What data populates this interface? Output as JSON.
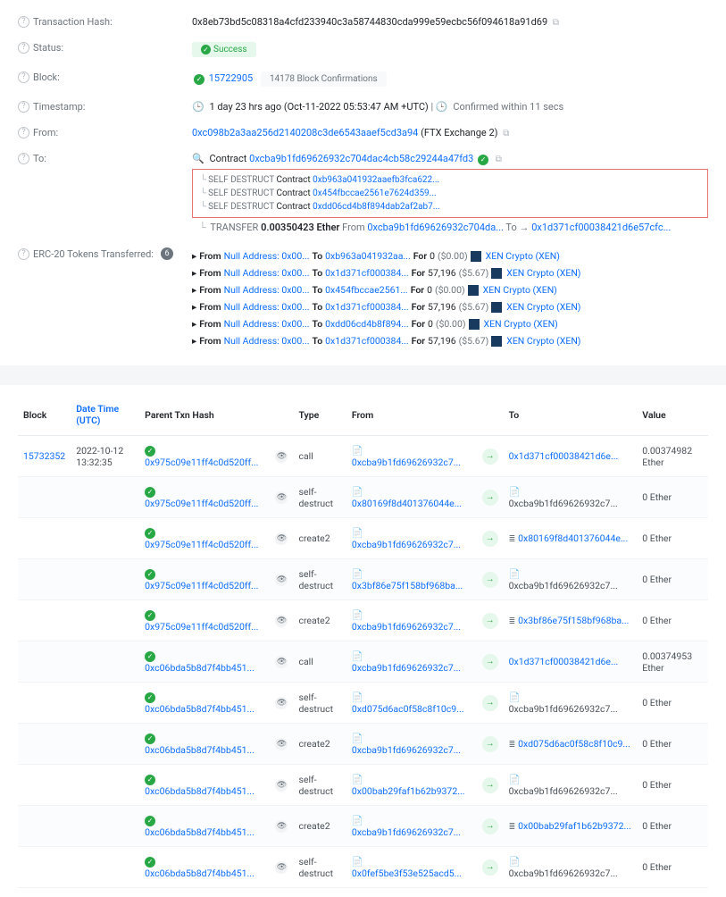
{
  "tx": {
    "hash_label": "Transaction Hash:",
    "hash": "0x8eb73bd5c08318a4cfd233940c3a58744830cda999e59ecbc56f094618a91d69",
    "status_label": "Status:",
    "status_badge": "Success",
    "block_label": "Block:",
    "block_number": "15722905",
    "block_confirmations": "14178 Block Confirmations",
    "timestamp_label": "Timestamp:",
    "timestamp_ago": "1 day 23 hrs ago",
    "timestamp_full": "(Oct-11-2022 05:53:47 AM +UTC)",
    "confirmed_within": "Confirmed within 11 secs",
    "from_label": "From:",
    "from_addr": "0xc098b2a3aa256d2140208c3de6543aaef5cd3a94",
    "from_tag": "(FTX Exchange 2)",
    "to_label": "To:",
    "to_contract_prefix": "Contract",
    "to_contract": "0xcba9b1fd69626932c704dac4cb58c29244a47fd3",
    "self_destruct_prefix": "SELF DESTRUCT",
    "contract_word": "Contract",
    "sd1": "0xb963a041932aaefb3fca622...",
    "sd2": "0x454fbccae2561e7624d359...",
    "sd3": "0xdd06cd4b8f894dab2af2ab7...",
    "transfer_label": "TRANSFER",
    "transfer_amount": "0.00350423 Ether",
    "transfer_from_word": "From",
    "transfer_from_addr": "0xcba9b1fd69626932c704da...",
    "transfer_to_word": "To",
    "transfer_to_arrow": "→",
    "transfer_to_addr": "0x1d371cf00038421d6e57cfc..."
  },
  "erc20": {
    "label": "ERC-20 Tokens Transferred:",
    "count": "6",
    "from_word": "From",
    "to_word": "To",
    "for_word": "For",
    "null_addr": "Null Address: 0x00...",
    "rows": [
      {
        "to": "0xb963a041932aa...",
        "amount": "0",
        "usd": "($0.00)",
        "token": "XEN Crypto (XEN)"
      },
      {
        "to": "0x1d371cf000384...",
        "amount": "57,196",
        "usd": "($5.67)",
        "token": "XEN Crypto (XEN)"
      },
      {
        "to": "0x454fbccae2561...",
        "amount": "0",
        "usd": "($0.00)",
        "token": "XEN Crypto (XEN)"
      },
      {
        "to": "0x1d371cf000384...",
        "amount": "57,196",
        "usd": "($5.67)",
        "token": "XEN Crypto (XEN)"
      },
      {
        "to": "0xdd06cd4b8f894...",
        "amount": "0",
        "usd": "($0.00)",
        "token": "XEN Crypto (XEN)"
      },
      {
        "to": "0x1d371cf000384...",
        "amount": "57,196",
        "usd": "($5.67)",
        "token": "XEN Crypto (XEN)"
      }
    ]
  },
  "table": {
    "headers": {
      "block": "Block",
      "datetime": "Date Time (UTC)",
      "parent": "Parent Txn Hash",
      "type": "Type",
      "from": "From",
      "to": "To",
      "value": "Value"
    },
    "block_num": "15732352",
    "datetime": "2022-10-12 13:32:35",
    "rows": [
      {
        "parent": "0x975c09e11ff4c0d520ff...",
        "type": "call",
        "from": "0xcba9b1fd69626932c7...",
        "to": "0x1d371cf00038421d6e...",
        "to_style": "link",
        "value": "0.00374982 Ether"
      },
      {
        "parent": "0x975c09e11ff4c0d520ff...",
        "type": "self-destruct",
        "from": "0x80169f8d401376044e...",
        "to": "0xcba9b1fd69626932c7...",
        "to_style": "plain",
        "value": "0 Ether"
      },
      {
        "parent": "0x975c09e11ff4c0d520ff...",
        "type": "create2",
        "from": "0xcba9b1fd69626932c7...",
        "to": "0x80169f8d401376044e...",
        "to_style": "bars",
        "value": "0 Ether"
      },
      {
        "parent": "0x975c09e11ff4c0d520ff...",
        "type": "self-destruct",
        "from": "0x3bf86e75f158bf968ba...",
        "to": "0xcba9b1fd69626932c7...",
        "to_style": "plain",
        "value": "0 Ether"
      },
      {
        "parent": "0x975c09e11ff4c0d520ff...",
        "type": "create2",
        "from": "0xcba9b1fd69626932c7...",
        "to": "0x3bf86e75f158bf968ba...",
        "to_style": "bars",
        "value": "0 Ether"
      },
      {
        "parent": "0xc06bda5b8d7f4bb451...",
        "type": "call",
        "from": "0xcba9b1fd69626932c7...",
        "to": "0x1d371cf00038421d6e...",
        "to_style": "link",
        "value": "0.00374953 Ether"
      },
      {
        "parent": "0xc06bda5b8d7f4bb451...",
        "type": "self-destruct",
        "from": "0xd075d6ac0f58c8f10c9...",
        "to": "0xcba9b1fd69626932c7...",
        "to_style": "plain",
        "value": "0 Ether"
      },
      {
        "parent": "0xc06bda5b8d7f4bb451...",
        "type": "create2",
        "from": "0xcba9b1fd69626932c7...",
        "to": "0xd075d6ac0f58c8f10c9...",
        "to_style": "bars",
        "value": "0 Ether"
      },
      {
        "parent": "0xc06bda5b8d7f4bb451...",
        "type": "self-destruct",
        "from": "0x00bab29faf1b62b9372...",
        "to": "0xcba9b1fd69626932c7...",
        "to_style": "plain",
        "value": "0 Ether"
      },
      {
        "parent": "0xc06bda5b8d7f4bb451...",
        "type": "create2",
        "from": "0xcba9b1fd69626932c7...",
        "to": "0x00bab29faf1b62b9372...",
        "to_style": "bars",
        "value": "0 Ether"
      },
      {
        "parent": "0xc06bda5b8d7f4bb451...",
        "type": "self-destruct",
        "from": "0x0fef5be3f53e525acd5...",
        "to": "0xcba9b1fd69626932c7...",
        "to_style": "plain",
        "value": "0 Ether"
      }
    ]
  }
}
